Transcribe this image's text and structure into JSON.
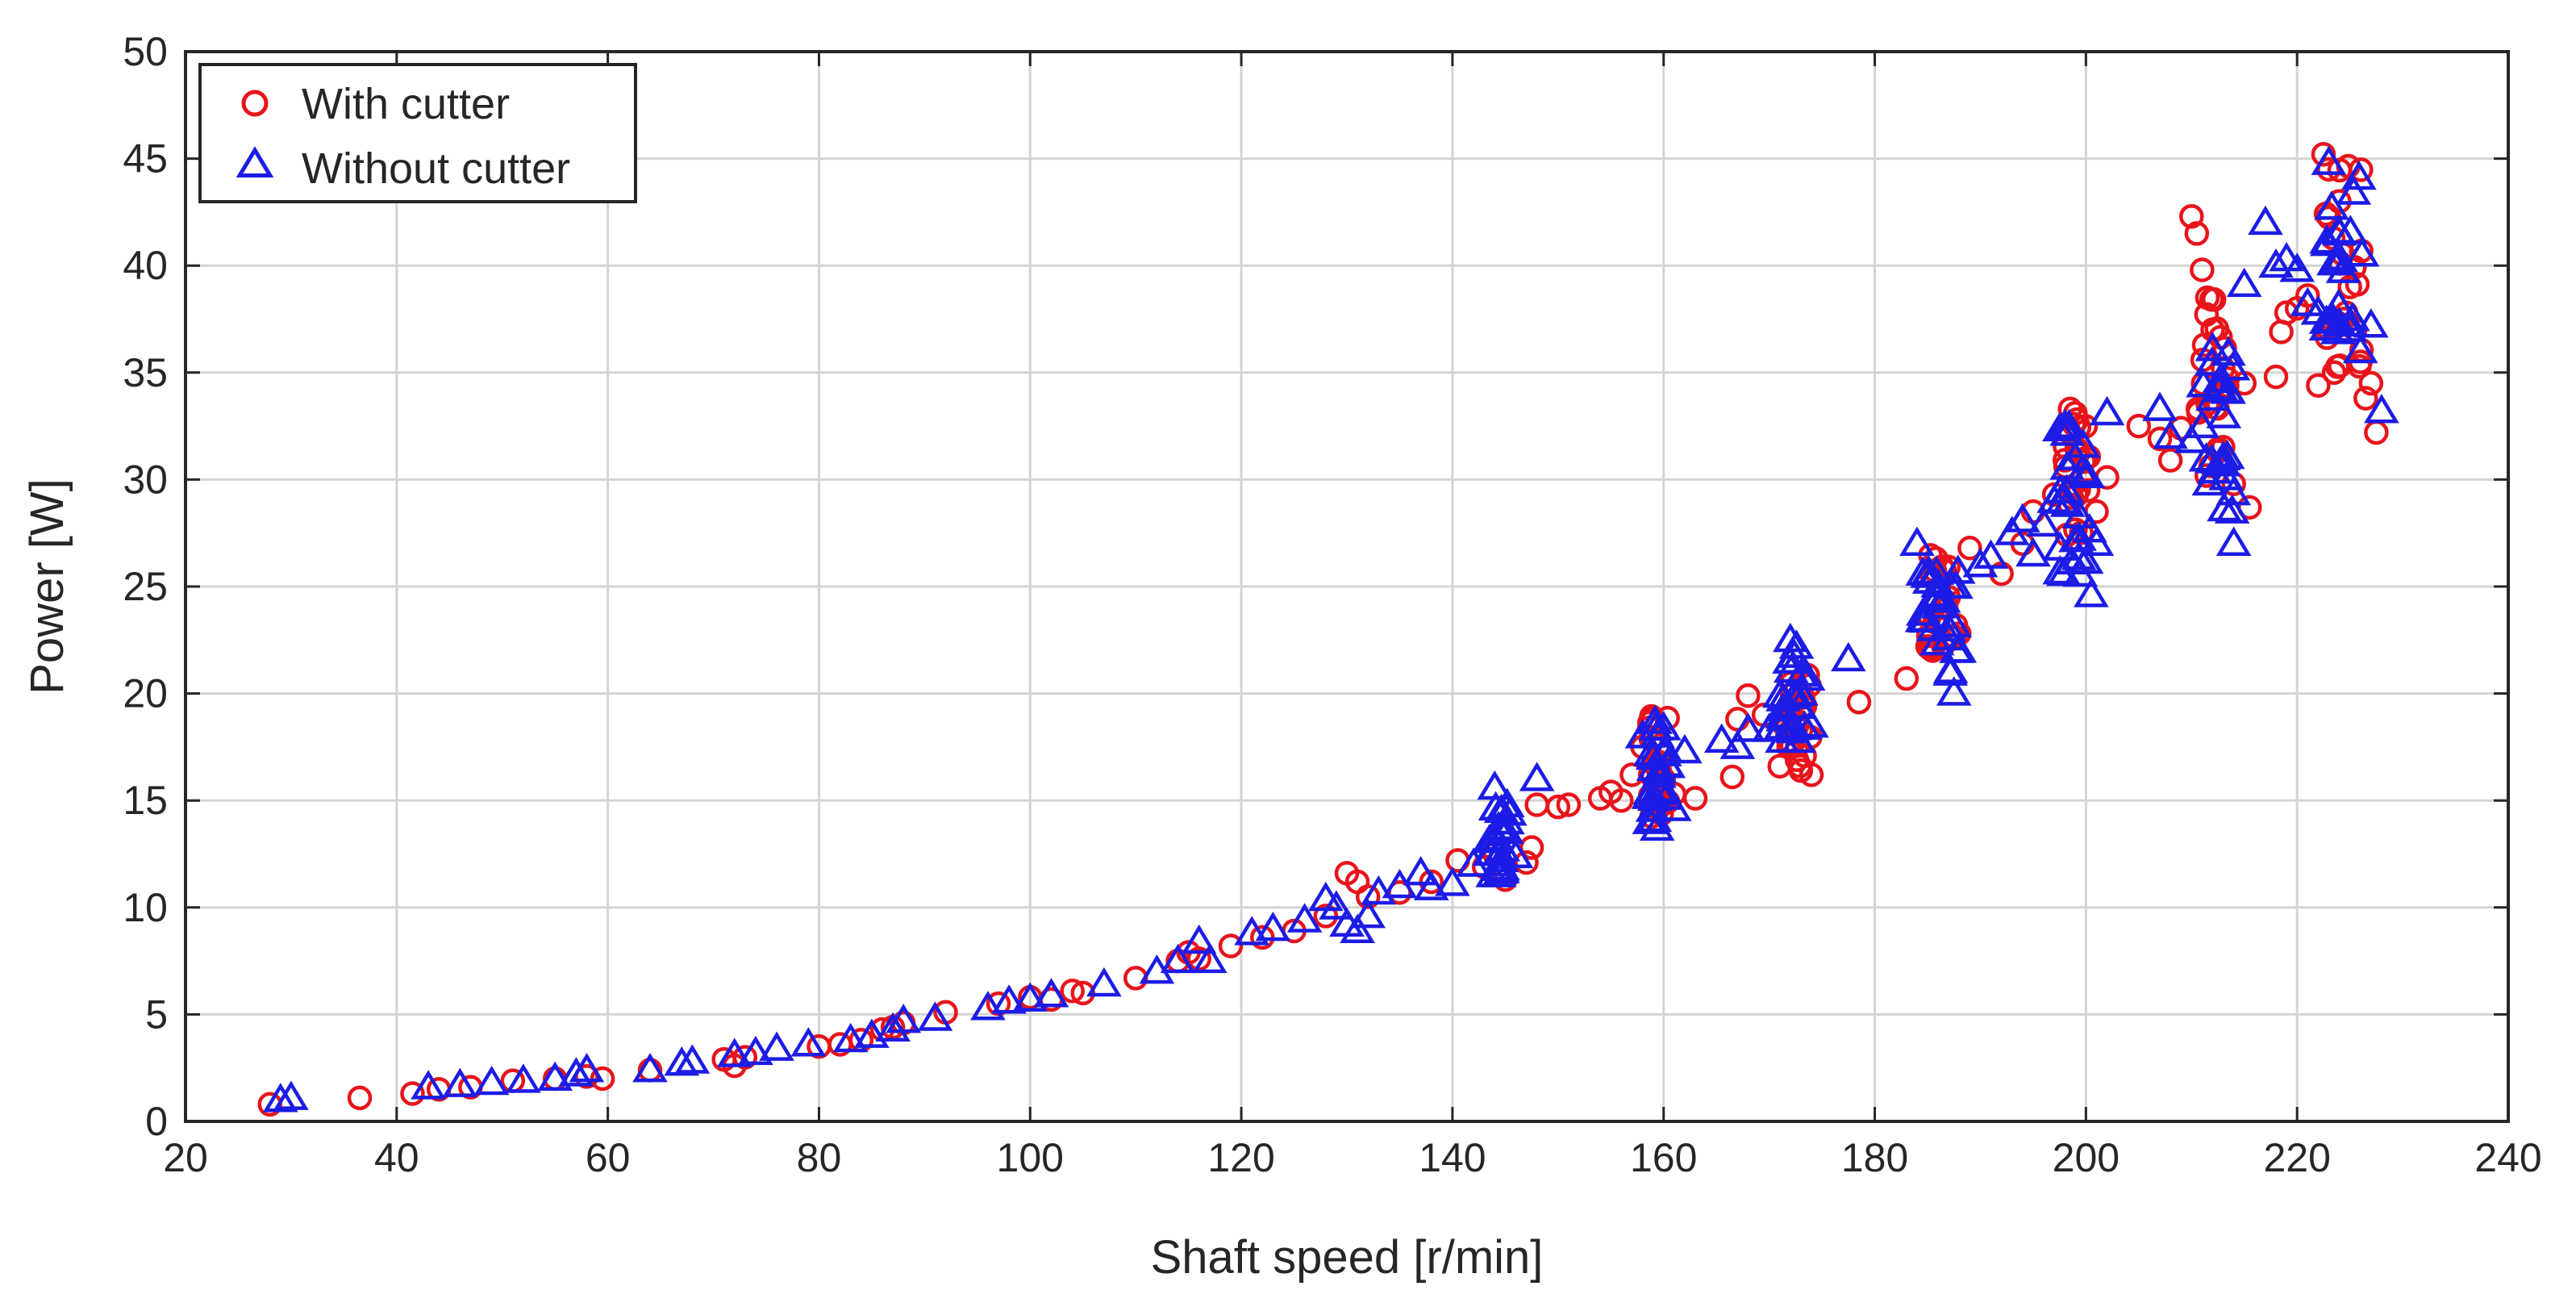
{
  "chart_data": {
    "type": "scatter",
    "xlabel": "Shaft speed [r/min]",
    "ylabel": "Power [W]",
    "xlim": [
      20,
      240
    ],
    "ylim": [
      0,
      50
    ],
    "xticks": [
      20,
      40,
      60,
      80,
      100,
      120,
      140,
      160,
      180,
      200,
      220,
      240
    ],
    "yticks": [
      0,
      5,
      10,
      15,
      20,
      25,
      30,
      35,
      40,
      45,
      50
    ],
    "grid": true,
    "legend_position": "top-left",
    "series": [
      {
        "name": "With cutter",
        "marker": "circle",
        "color": "#e8141b",
        "points": [
          [
            28,
            0.8
          ],
          [
            36.5,
            1.1
          ],
          [
            41.5,
            1.3
          ],
          [
            44,
            1.5
          ],
          [
            47,
            1.6
          ],
          [
            51,
            1.9
          ],
          [
            55,
            2.0
          ],
          [
            58,
            2.1
          ],
          [
            59.5,
            2.0
          ],
          [
            64,
            2.4
          ],
          [
            71,
            2.9
          ],
          [
            72,
            2.6
          ],
          [
            73,
            3.0
          ],
          [
            80,
            3.5
          ],
          [
            82,
            3.6
          ],
          [
            84,
            3.8
          ],
          [
            86,
            4.3
          ],
          [
            87,
            4.4
          ],
          [
            88,
            4.6
          ],
          [
            92,
            5.1
          ],
          [
            97,
            5.5
          ],
          [
            100,
            5.8
          ],
          [
            102,
            5.7
          ],
          [
            104,
            6.1
          ],
          [
            105,
            6.0
          ],
          [
            110,
            6.7
          ],
          [
            114,
            7.5
          ],
          [
            115,
            7.9
          ],
          [
            116,
            7.6
          ],
          [
            119,
            8.2
          ],
          [
            122,
            8.6
          ],
          [
            125,
            8.9
          ],
          [
            128,
            9.6
          ],
          [
            130,
            11.6
          ],
          [
            131,
            11.2
          ],
          [
            132,
            10.5
          ],
          [
            135,
            10.7
          ],
          [
            138,
            11.2
          ],
          [
            140.5,
            12.2
          ],
          [
            143,
            11.9
          ],
          [
            144,
            12.5
          ],
          [
            145,
            11.3
          ],
          [
            147,
            12.1
          ],
          [
            147.5,
            12.8
          ],
          [
            148,
            14.8
          ],
          [
            150,
            14.7
          ],
          [
            151,
            14.8
          ],
          [
            154,
            15.1
          ],
          [
            155,
            15.4
          ],
          [
            156,
            15.0
          ],
          [
            157,
            16.2
          ],
          [
            158,
            17.5
          ],
          [
            159,
            18.8
          ],
          [
            160,
            16.0
          ],
          [
            161,
            15.3
          ],
          [
            163,
            15.1
          ],
          [
            166.5,
            16.1
          ],
          [
            167,
            18.8
          ],
          [
            168,
            19.9
          ],
          [
            169.5,
            19.0
          ],
          [
            171,
            16.6
          ],
          [
            172,
            19.5
          ],
          [
            173,
            16.4
          ],
          [
            174,
            16.2
          ],
          [
            178.5,
            19.6
          ],
          [
            183,
            20.7
          ],
          [
            185,
            22.2
          ],
          [
            186,
            23.5
          ],
          [
            187,
            24.5
          ],
          [
            188,
            22.8
          ],
          [
            189,
            26.8
          ],
          [
            192,
            25.6
          ],
          [
            194,
            27.0
          ],
          [
            195,
            28.5
          ],
          [
            197,
            29.3
          ],
          [
            198,
            30.9
          ],
          [
            198.5,
            33.3
          ],
          [
            199,
            33.1
          ],
          [
            200,
            31.0
          ],
          [
            201,
            28.5
          ],
          [
            202,
            30.1
          ],
          [
            205,
            32.5
          ],
          [
            207,
            31.9
          ],
          [
            208,
            30.9
          ],
          [
            209,
            32.4
          ],
          [
            210,
            42.3
          ],
          [
            210.5,
            41.5
          ],
          [
            211,
            39.8
          ],
          [
            211.5,
            38.5
          ],
          [
            212,
            37.0
          ],
          [
            213,
            35.2
          ],
          [
            214,
            29.8
          ],
          [
            215,
            34.5
          ],
          [
            215.5,
            28.7
          ],
          [
            218,
            34.8
          ],
          [
            218.5,
            36.9
          ],
          [
            219,
            37.8
          ],
          [
            220,
            38.0
          ],
          [
            221,
            38.6
          ],
          [
            222,
            34.4
          ],
          [
            222.5,
            45.2
          ],
          [
            223,
            44.5
          ],
          [
            223.5,
            35.0
          ],
          [
            224,
            43.0
          ],
          [
            225,
            39.0
          ],
          [
            225.5,
            37.0
          ],
          [
            226,
            35.5
          ],
          [
            226.5,
            33.8
          ],
          [
            227,
            34.5
          ],
          [
            227.5,
            32.2
          ]
        ]
      },
      {
        "name": "Without cutter",
        "marker": "triangle",
        "color": "#1c1ce6",
        "points": [
          [
            29,
            1.0
          ],
          [
            30,
            1.1
          ],
          [
            43,
            1.6
          ],
          [
            46,
            1.7
          ],
          [
            49,
            1.8
          ],
          [
            52,
            1.9
          ],
          [
            55,
            2.0
          ],
          [
            57,
            2.2
          ],
          [
            58,
            2.4
          ],
          [
            64,
            2.4
          ],
          [
            67,
            2.7
          ],
          [
            68,
            2.8
          ],
          [
            72,
            3.1
          ],
          [
            74,
            3.2
          ],
          [
            76,
            3.4
          ],
          [
            79,
            3.6
          ],
          [
            83,
            3.8
          ],
          [
            85,
            4.0
          ],
          [
            87,
            4.3
          ],
          [
            88,
            4.7
          ],
          [
            91,
            4.8
          ],
          [
            96,
            5.3
          ],
          [
            98,
            5.6
          ],
          [
            100,
            5.7
          ],
          [
            102,
            5.9
          ],
          [
            107,
            6.4
          ],
          [
            112,
            7.0
          ],
          [
            114,
            7.5
          ],
          [
            116,
            8.4
          ],
          [
            117,
            7.5
          ],
          [
            121,
            8.8
          ],
          [
            123,
            9.0
          ],
          [
            126,
            9.4
          ],
          [
            128,
            10.4
          ],
          [
            129,
            10.0
          ],
          [
            130,
            9.2
          ],
          [
            131,
            8.9
          ],
          [
            132,
            9.6
          ],
          [
            133,
            10.7
          ],
          [
            135,
            11.0
          ],
          [
            137,
            11.6
          ],
          [
            138,
            10.9
          ],
          [
            140,
            11.1
          ],
          [
            142,
            12.0
          ],
          [
            144,
            15.6
          ],
          [
            145,
            13.6
          ],
          [
            146,
            12.4
          ],
          [
            148,
            16.0
          ],
          [
            158,
            18.0
          ],
          [
            159,
            17.0
          ],
          [
            160,
            15.5
          ],
          [
            161,
            14.6
          ],
          [
            162,
            17.3
          ],
          [
            165.5,
            17.8
          ],
          [
            167,
            17.5
          ],
          [
            168,
            18.3
          ],
          [
            170,
            18.3
          ],
          [
            171,
            19.9
          ],
          [
            172,
            22.5
          ],
          [
            173,
            20.0
          ],
          [
            174,
            18.5
          ],
          [
            177.5,
            21.6
          ],
          [
            184,
            27.0
          ],
          [
            185,
            25.5
          ],
          [
            186,
            24.5
          ],
          [
            187,
            23.0
          ],
          [
            187.5,
            20.0
          ],
          [
            188,
            22.0
          ],
          [
            190,
            26.0
          ],
          [
            191,
            26.4
          ],
          [
            193,
            27.5
          ],
          [
            194,
            28.1
          ],
          [
            195,
            26.5
          ],
          [
            196,
            27.9
          ],
          [
            197,
            29.0
          ],
          [
            198,
            32.5
          ],
          [
            199,
            31.0
          ],
          [
            200,
            30.2
          ],
          [
            200.5,
            24.6
          ],
          [
            201,
            27.0
          ],
          [
            202,
            33.1
          ],
          [
            207,
            33.3
          ],
          [
            208,
            32.0
          ],
          [
            210,
            31.8
          ],
          [
            211,
            32.5
          ],
          [
            212,
            36.1
          ],
          [
            213,
            31.0
          ],
          [
            214,
            27.0
          ],
          [
            215,
            39.1
          ],
          [
            217,
            42.0
          ],
          [
            218,
            40.0
          ],
          [
            219,
            40.3
          ],
          [
            220,
            39.8
          ],
          [
            221,
            38.2
          ],
          [
            222,
            37.8
          ],
          [
            223,
            44.8
          ],
          [
            224,
            41.5
          ],
          [
            225,
            37.0
          ],
          [
            226,
            36.0
          ],
          [
            227,
            37.2
          ],
          [
            228,
            33.2
          ]
        ]
      }
    ],
    "clusters": [
      {
        "series": 0,
        "x": [
          158.5,
          160.5
        ],
        "y": [
          14.0,
          19.0
        ]
      },
      {
        "series": 1,
        "x": [
          158.5,
          160.5
        ],
        "y": [
          13.2,
          18.8
        ]
      },
      {
        "series": 1,
        "x": [
          143.5,
          145.5
        ],
        "y": [
          11.5,
          14.8
        ]
      },
      {
        "series": 1,
        "x": [
          171,
          174
        ],
        "y": [
          17.0,
          22.5
        ]
      },
      {
        "series": 0,
        "x": [
          171.5,
          174
        ],
        "y": [
          16.5,
          21.0
        ]
      },
      {
        "series": 1,
        "x": [
          184.5,
          188
        ],
        "y": [
          20.5,
          27.0
        ]
      },
      {
        "series": 0,
        "x": [
          185,
          188
        ],
        "y": [
          22.0,
          26.5
        ]
      },
      {
        "series": 1,
        "x": [
          197.5,
          200.5
        ],
        "y": [
          25.5,
          32.5
        ]
      },
      {
        "series": 0,
        "x": [
          198,
          200.5
        ],
        "y": [
          27.0,
          33.0
        ]
      },
      {
        "series": 1,
        "x": [
          211,
          214
        ],
        "y": [
          28.5,
          36.0
        ]
      },
      {
        "series": 0,
        "x": [
          210.5,
          213.5
        ],
        "y": [
          30.0,
          38.5
        ]
      },
      {
        "series": 1,
        "x": [
          222.5,
          226.5
        ],
        "y": [
          36.0,
          44.5
        ]
      },
      {
        "series": 0,
        "x": [
          222.5,
          226.5
        ],
        "y": [
          35.0,
          45.0
        ]
      }
    ]
  }
}
